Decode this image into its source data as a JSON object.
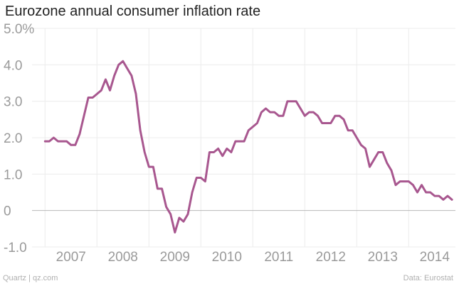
{
  "chart_data": {
    "type": "line",
    "title": "Eurozone annual consumer inflation rate",
    "xlabel": "",
    "ylabel": "",
    "ylim": [
      -1.0,
      5.0
    ],
    "xlim": [
      2006.75,
      2014.9
    ],
    "y_ticks": [
      -1.0,
      0,
      1.0,
      2.0,
      3.0,
      4.0,
      5.0
    ],
    "y_tick_labels": [
      "-1.0",
      "0",
      "1.0",
      "2.0",
      "3.0",
      "4.0",
      "5.0%"
    ],
    "x_ticks": [
      2007,
      2008,
      2009,
      2010,
      2011,
      2012,
      2013,
      2014
    ],
    "x_tick_labels": [
      "2007",
      "2008",
      "2009",
      "2010",
      "2011",
      "2012",
      "2013",
      "2014"
    ],
    "grid": true,
    "legend": "none",
    "colors": {
      "line": "#a8578f",
      "zero_line": "#b8b8b8",
      "grid": "#ececec"
    },
    "series": [
      {
        "name": "Inflation rate (%)",
        "start": "2007-01",
        "frequency": "monthly",
        "values": [
          1.9,
          1.9,
          2.0,
          1.9,
          1.9,
          1.9,
          1.8,
          1.8,
          2.1,
          2.6,
          3.1,
          3.1,
          3.2,
          3.3,
          3.6,
          3.3,
          3.7,
          4.0,
          4.1,
          3.9,
          3.7,
          3.2,
          2.2,
          1.6,
          1.2,
          1.2,
          0.6,
          0.6,
          0.1,
          -0.1,
          -0.6,
          -0.2,
          -0.3,
          -0.1,
          0.5,
          0.9,
          0.9,
          0.8,
          1.6,
          1.6,
          1.7,
          1.5,
          1.7,
          1.6,
          1.9,
          1.9,
          1.9,
          2.2,
          2.3,
          2.4,
          2.7,
          2.8,
          2.7,
          2.7,
          2.6,
          2.6,
          3.0,
          3.0,
          3.0,
          2.8,
          2.6,
          2.7,
          2.7,
          2.6,
          2.4,
          2.4,
          2.4,
          2.6,
          2.6,
          2.5,
          2.2,
          2.2,
          2.0,
          1.8,
          1.7,
          1.2,
          1.4,
          1.6,
          1.6,
          1.3,
          1.1,
          0.7,
          0.8,
          0.8,
          0.8,
          0.7,
          0.5,
          0.7,
          0.5,
          0.5,
          0.4,
          0.4,
          0.3,
          0.4,
          0.3
        ]
      }
    ]
  },
  "footer": {
    "source_left": "Quartz | qz.com",
    "source_right": "Data: Eurostat"
  }
}
